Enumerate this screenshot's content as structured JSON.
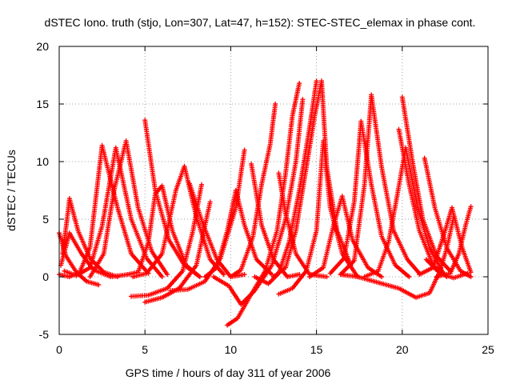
{
  "chart_data": {
    "type": "scatter",
    "title": "dSTEC Iono. truth (stjo, Lon=307, Lat=47, h=152): STEC-STEC_elemax in phase cont.",
    "xlabel": "GPS time / hours of day 311 of year 2006",
    "ylabel": "dSTEC  / TECUs",
    "xlim": [
      0,
      25
    ],
    "ylim": [
      -5,
      20
    ],
    "x_ticks": [
      0,
      5,
      10,
      15,
      20,
      25
    ],
    "y_ticks": [
      -5,
      0,
      5,
      10,
      15,
      20
    ],
    "grid": true,
    "marker": "plus",
    "color": "#ff0000",
    "passes": [
      {
        "points": [
          [
            0.0,
            3.8
          ],
          [
            0.4,
            1.8
          ],
          [
            1.0,
            0.4
          ],
          [
            1.6,
            -0.4
          ],
          [
            2.3,
            -0.7
          ]
        ]
      },
      {
        "points": [
          [
            0.0,
            0.2
          ],
          [
            0.6,
            0.0
          ],
          [
            1.2,
            0.4
          ],
          [
            1.8,
            2.6
          ],
          [
            2.5,
            11.4
          ],
          [
            3.4,
            6.0
          ],
          [
            4.2,
            2.0
          ],
          [
            5.2,
            0.3
          ]
        ]
      },
      {
        "points": [
          [
            0.3,
            0.5
          ],
          [
            1.0,
            0.1
          ],
          [
            1.8,
            0.8
          ],
          [
            2.5,
            4.4
          ],
          [
            3.3,
            11.2
          ],
          [
            4.2,
            5.0
          ],
          [
            5.1,
            1.6
          ],
          [
            6.0,
            0.0
          ]
        ]
      },
      {
        "points": [
          [
            0.2,
            2.0
          ],
          [
            0.5,
            5.5
          ],
          [
            0.6,
            6.8
          ],
          [
            1.1,
            4.0
          ],
          [
            1.8,
            1.6
          ],
          [
            2.6,
            0.4
          ],
          [
            3.4,
            0.0
          ]
        ]
      },
      {
        "points": [
          [
            0.1,
            1.0
          ],
          [
            0.6,
            3.8
          ],
          [
            1.3,
            2.0
          ],
          [
            2.0,
            0.6
          ],
          [
            3.0,
            0.0
          ],
          [
            4.0,
            0.2
          ]
        ]
      },
      {
        "points": [
          [
            1.8,
            0.0
          ],
          [
            2.6,
            2.0
          ],
          [
            3.2,
            7.5
          ],
          [
            3.9,
            11.8
          ],
          [
            4.6,
            6.0
          ],
          [
            5.4,
            2.2
          ],
          [
            6.3,
            0.2
          ]
        ]
      },
      {
        "points": [
          [
            4.0,
            0.2
          ],
          [
            4.6,
            0.4
          ],
          [
            5.2,
            3.0
          ],
          [
            5.6,
            7.2
          ],
          [
            6.0,
            7.9
          ],
          [
            6.6,
            4.0
          ],
          [
            7.4,
            1.0
          ],
          [
            8.2,
            0.0
          ]
        ]
      },
      {
        "points": [
          [
            5.0,
            13.6
          ],
          [
            5.6,
            7.5
          ],
          [
            6.4,
            3.2
          ],
          [
            7.3,
            1.0
          ],
          [
            8.2,
            0.0
          ]
        ]
      },
      {
        "points": [
          [
            4.3,
            0.0
          ],
          [
            5.1,
            0.3
          ],
          [
            6.0,
            2.0
          ],
          [
            6.8,
            7.5
          ],
          [
            7.3,
            9.6
          ],
          [
            8.0,
            5.2
          ],
          [
            8.8,
            1.5
          ],
          [
            9.6,
            0.2
          ]
        ]
      },
      {
        "points": [
          [
            4.2,
            -1.7
          ],
          [
            5.2,
            -1.6
          ],
          [
            6.3,
            -1.0
          ],
          [
            7.2,
            0.5
          ],
          [
            7.8,
            4.0
          ],
          [
            8.3,
            8.0
          ]
        ]
      },
      {
        "points": [
          [
            5.0,
            -2.2
          ],
          [
            6.0,
            -1.8
          ],
          [
            7.0,
            -1.0
          ],
          [
            8.0,
            1.0
          ],
          [
            8.8,
            6.5
          ]
        ]
      },
      {
        "points": [
          [
            6.5,
            -1.2
          ],
          [
            7.5,
            -1.1
          ],
          [
            8.5,
            -0.4
          ],
          [
            9.4,
            1.6
          ],
          [
            10.3,
            6.0
          ],
          [
            10.8,
            11.0
          ]
        ]
      },
      {
        "points": [
          [
            7.6,
            8.1
          ],
          [
            8.4,
            4.5
          ],
          [
            9.2,
            1.5
          ],
          [
            10.0,
            0.0
          ],
          [
            10.8,
            0.2
          ]
        ]
      },
      {
        "points": [
          [
            8.5,
            0.0
          ],
          [
            9.2,
            0.8
          ],
          [
            9.8,
            4.0
          ],
          [
            10.3,
            7.5
          ],
          [
            10.8,
            4.5
          ],
          [
            11.5,
            1.5
          ],
          [
            12.4,
            0.2
          ]
        ]
      },
      {
        "points": [
          [
            9.0,
            0.0
          ],
          [
            9.9,
            -0.8
          ],
          [
            10.6,
            -2.4
          ],
          [
            11.4,
            -1.2
          ],
          [
            12.4,
            1.0
          ],
          [
            13.2,
            5.0
          ],
          [
            13.8,
            10.0
          ],
          [
            14.2,
            15.4
          ]
        ]
      },
      {
        "points": [
          [
            9.8,
            -4.2
          ],
          [
            10.4,
            -3.6
          ],
          [
            11.2,
            -1.5
          ],
          [
            12.0,
            0.5
          ],
          [
            12.7,
            4.0
          ],
          [
            13.2,
            9.0
          ],
          [
            13.6,
            14.0
          ],
          [
            14.0,
            16.8
          ]
        ]
      },
      {
        "points": [
          [
            10.0,
            0.0
          ],
          [
            10.6,
            0.6
          ],
          [
            11.3,
            3.5
          ],
          [
            11.8,
            8.0
          ],
          [
            12.3,
            11.5
          ],
          [
            12.6,
            15.0
          ]
        ]
      },
      {
        "points": [
          [
            11.2,
            9.8
          ],
          [
            11.8,
            4.5
          ],
          [
            12.5,
            1.5
          ],
          [
            13.3,
            0.0
          ],
          [
            14.0,
            0.2
          ]
        ]
      },
      {
        "points": [
          [
            11.4,
            0.0
          ],
          [
            12.2,
            -0.6
          ],
          [
            12.8,
            0.3
          ],
          [
            13.4,
            3.0
          ],
          [
            14.0,
            7.5
          ],
          [
            14.6,
            13.0
          ],
          [
            15.0,
            17.0
          ]
        ]
      },
      {
        "points": [
          [
            12.5,
            0.0
          ],
          [
            13.2,
            0.8
          ],
          [
            13.8,
            4.0
          ],
          [
            14.3,
            8.5
          ],
          [
            14.9,
            14.0
          ],
          [
            15.3,
            17.0
          ],
          [
            15.6,
            9.5
          ],
          [
            16.2,
            4.0
          ],
          [
            17.0,
            1.0
          ]
        ]
      },
      {
        "points": [
          [
            12.8,
            -1.5
          ],
          [
            13.6,
            -1.0
          ],
          [
            14.4,
            0.5
          ],
          [
            15.0,
            4.0
          ],
          [
            15.4,
            11.8
          ],
          [
            15.8,
            6.0
          ],
          [
            16.5,
            2.0
          ],
          [
            17.4,
            0.0
          ]
        ]
      },
      {
        "points": [
          [
            12.8,
            9.0
          ],
          [
            13.2,
            5.5
          ],
          [
            13.8,
            2.0
          ],
          [
            14.6,
            0.2
          ],
          [
            15.6,
            0.0
          ]
        ]
      },
      {
        "points": [
          [
            14.6,
            0.0
          ],
          [
            15.4,
            0.8
          ],
          [
            16.0,
            4.5
          ],
          [
            16.5,
            7.0
          ],
          [
            17.1,
            3.2
          ],
          [
            18.0,
            0.8
          ],
          [
            18.8,
            0.0
          ]
        ]
      },
      {
        "points": [
          [
            15.8,
            0.3
          ],
          [
            16.6,
            1.6
          ],
          [
            17.2,
            6.5
          ],
          [
            17.6,
            13.5
          ],
          [
            18.2,
            8.0
          ],
          [
            18.8,
            3.5
          ],
          [
            19.6,
            1.0
          ],
          [
            20.4,
            0.0
          ]
        ]
      },
      {
        "points": [
          [
            16.4,
            0.2
          ],
          [
            17.2,
            1.4
          ],
          [
            17.8,
            8.0
          ],
          [
            18.2,
            15.8
          ],
          [
            18.8,
            9.5
          ],
          [
            19.5,
            4.0
          ],
          [
            20.3,
            1.5
          ],
          [
            21.0,
            0.3
          ]
        ]
      },
      {
        "points": [
          [
            17.8,
            0.0
          ],
          [
            18.6,
            0.5
          ],
          [
            19.2,
            3.0
          ],
          [
            19.7,
            7.0
          ],
          [
            20.2,
            11.2
          ],
          [
            20.9,
            6.0
          ],
          [
            21.6,
            2.5
          ],
          [
            22.4,
            0.3
          ]
        ]
      },
      {
        "points": [
          [
            19.8,
            12.8
          ],
          [
            20.4,
            8.0
          ],
          [
            21.0,
            4.0
          ],
          [
            21.8,
            1.0
          ],
          [
            22.6,
            0.0
          ]
        ]
      },
      {
        "points": [
          [
            20.0,
            15.6
          ],
          [
            20.6,
            10.0
          ],
          [
            21.2,
            5.0
          ],
          [
            22.0,
            1.8
          ],
          [
            22.8,
            0.5
          ]
        ]
      },
      {
        "points": [
          [
            16.4,
            0.2
          ],
          [
            17.4,
            0.0
          ],
          [
            18.6,
            -0.5
          ],
          [
            19.8,
            -1.0
          ],
          [
            20.8,
            -1.8
          ],
          [
            21.6,
            -1.4
          ],
          [
            22.2,
            0.5
          ],
          [
            22.6,
            2.5
          ],
          [
            23.0,
            5.2
          ]
        ]
      },
      {
        "points": [
          [
            21.3,
            10.3
          ],
          [
            21.9,
            6.0
          ],
          [
            22.6,
            2.5
          ],
          [
            23.4,
            0.5
          ],
          [
            24.0,
            0.0
          ]
        ]
      },
      {
        "points": [
          [
            21.0,
            0.2
          ],
          [
            21.8,
            0.8
          ],
          [
            22.5,
            4.0
          ],
          [
            22.9,
            6.0
          ],
          [
            23.5,
            2.5
          ],
          [
            24.0,
            0.4
          ]
        ]
      },
      {
        "points": [
          [
            22.0,
            0.0
          ],
          [
            22.8,
            0.3
          ],
          [
            23.3,
            2.0
          ],
          [
            23.7,
            4.5
          ],
          [
            24.0,
            6.1
          ]
        ]
      },
      {
        "points": [
          [
            21.4,
            1.5
          ],
          [
            22.2,
            0.3
          ],
          [
            23.0,
            -0.1
          ],
          [
            23.8,
            0.3
          ]
        ]
      }
    ]
  }
}
